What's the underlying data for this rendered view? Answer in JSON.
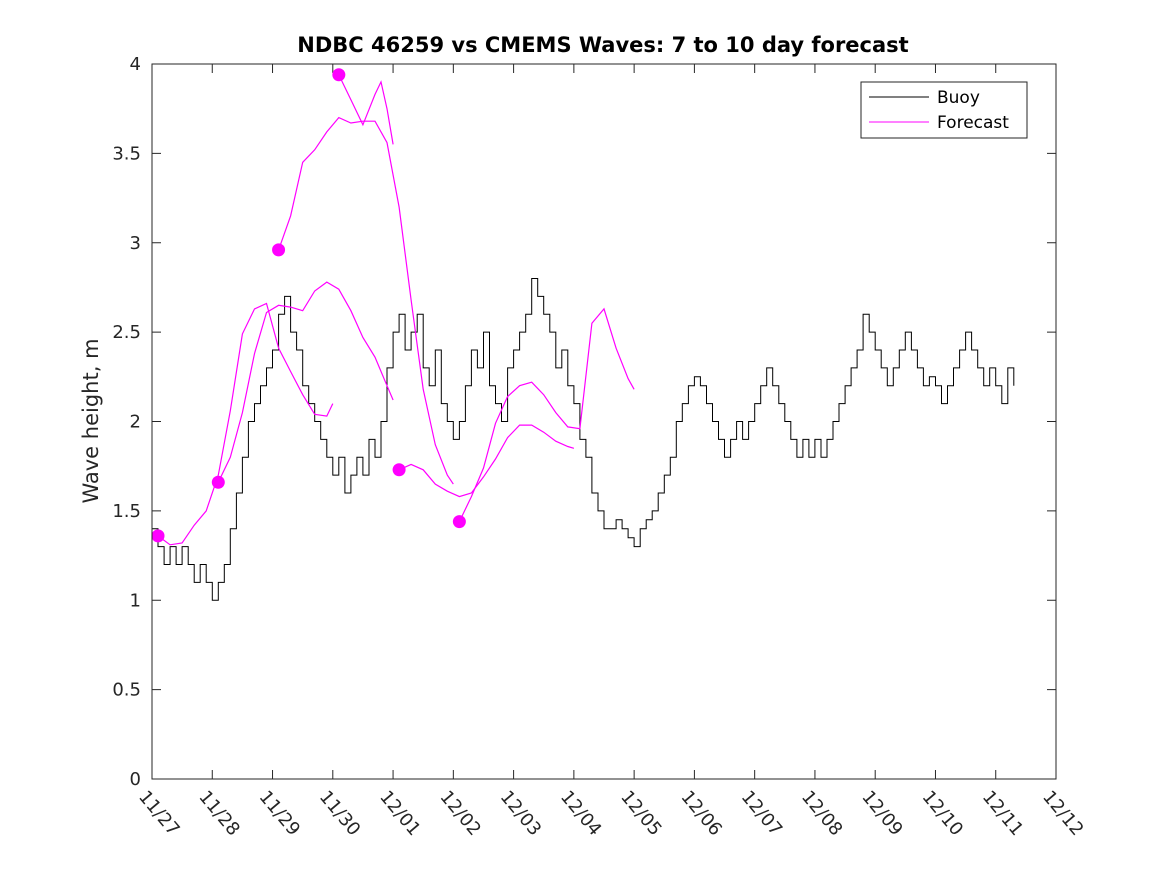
{
  "chart_data": {
    "type": "line",
    "title": "NDBC 46259 vs CMEMS Waves: 7 to 10 day forecast",
    "xlabel": "",
    "ylabel": "Wave height, m",
    "xlim": [
      0,
      15
    ],
    "ylim": [
      0,
      4
    ],
    "x_unit": "days since 11/27",
    "xticks": [
      0,
      1,
      2,
      3,
      4,
      5,
      6,
      7,
      8,
      9,
      10,
      11,
      12,
      13,
      14,
      15
    ],
    "xtick_labels": [
      "11/27",
      "11/28",
      "11/29",
      "11/30",
      "12/01",
      "12/02",
      "12/03",
      "12/04",
      "12/05",
      "12/06",
      "12/07",
      "12/08",
      "12/09",
      "12/10",
      "12/11",
      "12/12"
    ],
    "yticks": [
      0,
      0.5,
      1,
      1.5,
      2,
      2.5,
      3,
      3.5,
      4
    ],
    "ytick_labels": [
      "0",
      "0.5",
      "1",
      "1.5",
      "2",
      "2.5",
      "3",
      "3.5",
      "4"
    ],
    "legend": {
      "position": "top-right",
      "entries": [
        "Buoy",
        "Forecast"
      ]
    },
    "colors": {
      "buoy": "#000000",
      "forecast": "#ff00ff"
    },
    "series": [
      {
        "name": "Buoy",
        "x": [
          0.0,
          0.1,
          0.2,
          0.3,
          0.4,
          0.5,
          0.6,
          0.7,
          0.8,
          0.9,
          1.0,
          1.1,
          1.2,
          1.3,
          1.4,
          1.5,
          1.6,
          1.7,
          1.8,
          1.9,
          2.0,
          2.1,
          2.2,
          2.3,
          2.4,
          2.5,
          2.6,
          2.7,
          2.8,
          2.9,
          3.0,
          3.1,
          3.2,
          3.3,
          3.4,
          3.5,
          3.6,
          3.7,
          3.8,
          3.9,
          4.0,
          4.1,
          4.2,
          4.3,
          4.4,
          4.5,
          4.6,
          4.7,
          4.8,
          4.9,
          5.0,
          5.1,
          5.2,
          5.3,
          5.4,
          5.5,
          5.6,
          5.7,
          5.8,
          5.9,
          6.0,
          6.1,
          6.2,
          6.3,
          6.4,
          6.5,
          6.6,
          6.7,
          6.8,
          6.9,
          7.0,
          7.1,
          7.2,
          7.3,
          7.4,
          7.5,
          7.6,
          7.7,
          7.8,
          7.9,
          8.0,
          8.1,
          8.2,
          8.3,
          8.4,
          8.5,
          8.6,
          8.7,
          8.8,
          8.9,
          9.0,
          9.1,
          9.2,
          9.3,
          9.4,
          9.5,
          9.6,
          9.7,
          9.8,
          9.9,
          10.0,
          10.1,
          10.2,
          10.3,
          10.4,
          10.5,
          10.6,
          10.7,
          10.8,
          10.9,
          11.0,
          11.1,
          11.2,
          11.3,
          11.4,
          11.5,
          11.6,
          11.7,
          11.8,
          11.9,
          12.0,
          12.1,
          12.2,
          12.3,
          12.4,
          12.5,
          12.6,
          12.7,
          12.8,
          12.9,
          13.0,
          13.1,
          13.2,
          13.3,
          13.4,
          13.5,
          13.6,
          13.7,
          13.8,
          13.9,
          14.0,
          14.1,
          14.2,
          14.3
        ],
        "y": [
          1.4,
          1.3,
          1.2,
          1.3,
          1.2,
          1.3,
          1.2,
          1.1,
          1.2,
          1.1,
          1.0,
          1.1,
          1.2,
          1.4,
          1.6,
          1.8,
          2.0,
          2.1,
          2.2,
          2.3,
          2.4,
          2.6,
          2.7,
          2.5,
          2.4,
          2.2,
          2.1,
          2.0,
          1.9,
          1.8,
          1.7,
          1.8,
          1.6,
          1.7,
          1.8,
          1.7,
          1.9,
          1.8,
          2.0,
          2.3,
          2.5,
          2.6,
          2.4,
          2.5,
          2.6,
          2.3,
          2.2,
          2.4,
          2.1,
          2.0,
          1.9,
          2.0,
          2.2,
          2.4,
          2.3,
          2.5,
          2.2,
          2.1,
          2.0,
          2.3,
          2.4,
          2.5,
          2.6,
          2.8,
          2.7,
          2.6,
          2.5,
          2.3,
          2.4,
          2.2,
          2.1,
          1.9,
          1.8,
          1.6,
          1.5,
          1.4,
          1.4,
          1.45,
          1.4,
          1.35,
          1.3,
          1.4,
          1.45,
          1.5,
          1.6,
          1.7,
          1.8,
          2.0,
          2.1,
          2.2,
          2.25,
          2.2,
          2.1,
          2.0,
          1.9,
          1.8,
          1.9,
          2.0,
          1.9,
          2.0,
          2.1,
          2.2,
          2.3,
          2.2,
          2.1,
          2.0,
          1.9,
          1.8,
          1.9,
          1.8,
          1.9,
          1.8,
          1.9,
          2.0,
          2.1,
          2.2,
          2.3,
          2.4,
          2.6,
          2.5,
          2.4,
          2.3,
          2.2,
          2.3,
          2.4,
          2.5,
          2.4,
          2.3,
          2.2,
          2.25,
          2.2,
          2.1,
          2.2,
          2.3,
          2.4,
          2.5,
          2.4,
          2.3,
          2.2,
          2.3,
          2.2,
          2.1,
          2.3,
          2.2
        ]
      },
      {
        "name": "Forecast",
        "runs": [
          {
            "x": [
              0.1,
              0.3,
              0.5,
              0.7,
              0.9,
              1.1,
              1.3,
              1.5,
              1.7,
              1.9,
              2.1,
              2.3,
              2.5,
              2.7,
              2.9,
              3.0
            ],
            "y": [
              1.36,
              1.31,
              1.32,
              1.42,
              1.5,
              1.7,
              2.06,
              2.49,
              2.63,
              2.66,
              2.41,
              2.28,
              2.15,
              2.04,
              2.03,
              2.1
            ]
          },
          {
            "x": [
              1.1,
              1.3,
              1.5,
              1.7,
              1.9,
              2.1,
              2.3,
              2.5,
              2.7,
              2.9,
              3.1,
              3.3,
              3.5,
              3.7,
              3.9,
              4.0
            ],
            "y": [
              1.66,
              1.8,
              2.05,
              2.38,
              2.61,
              2.65,
              2.64,
              2.62,
              2.73,
              2.78,
              2.74,
              2.62,
              2.47,
              2.36,
              2.2,
              2.12
            ]
          },
          {
            "x": [
              2.1,
              2.3,
              2.5,
              2.7,
              2.9,
              3.1,
              3.3,
              3.5,
              3.7,
              3.9,
              4.1,
              4.3,
              4.5,
              4.7,
              4.9,
              5.0
            ],
            "y": [
              2.96,
              3.15,
              3.45,
              3.52,
              3.62,
              3.7,
              3.67,
              3.68,
              3.68,
              3.56,
              3.2,
              2.68,
              2.18,
              1.87,
              1.7,
              1.65
            ]
          },
          {
            "x": [
              3.1,
              3.3,
              3.5,
              3.7,
              3.8,
              3.9,
              4.0
            ],
            "y": [
              3.94,
              3.8,
              3.66,
              3.83,
              3.9,
              3.75,
              3.55
            ]
          },
          {
            "x": [
              4.1,
              4.3,
              4.5,
              4.7,
              4.9,
              5.1,
              5.3,
              5.5,
              5.7,
              5.9,
              6.1,
              6.3,
              6.5,
              6.7,
              6.9,
              7.0
            ],
            "y": [
              1.73,
              1.76,
              1.73,
              1.65,
              1.61,
              1.58,
              1.6,
              1.69,
              1.79,
              1.91,
              1.98,
              1.98,
              1.94,
              1.89,
              1.86,
              1.85
            ]
          },
          {
            "x": [
              5.1,
              5.3,
              5.5,
              5.7,
              5.9,
              6.1,
              6.3,
              6.5,
              6.7,
              6.9,
              7.1,
              7.3,
              7.5,
              7.7,
              7.9,
              8.0
            ],
            "y": [
              1.44,
              1.58,
              1.74,
              1.99,
              2.14,
              2.2,
              2.22,
              2.15,
              2.05,
              1.97,
              1.96,
              2.55,
              2.63,
              2.41,
              2.24,
              2.18
            ]
          }
        ],
        "initial_points": {
          "x": [
            0.1,
            1.1,
            2.1,
            3.1,
            4.1,
            5.1
          ],
          "y": [
            1.36,
            1.66,
            2.96,
            3.94,
            1.73,
            1.44
          ]
        }
      }
    ]
  }
}
